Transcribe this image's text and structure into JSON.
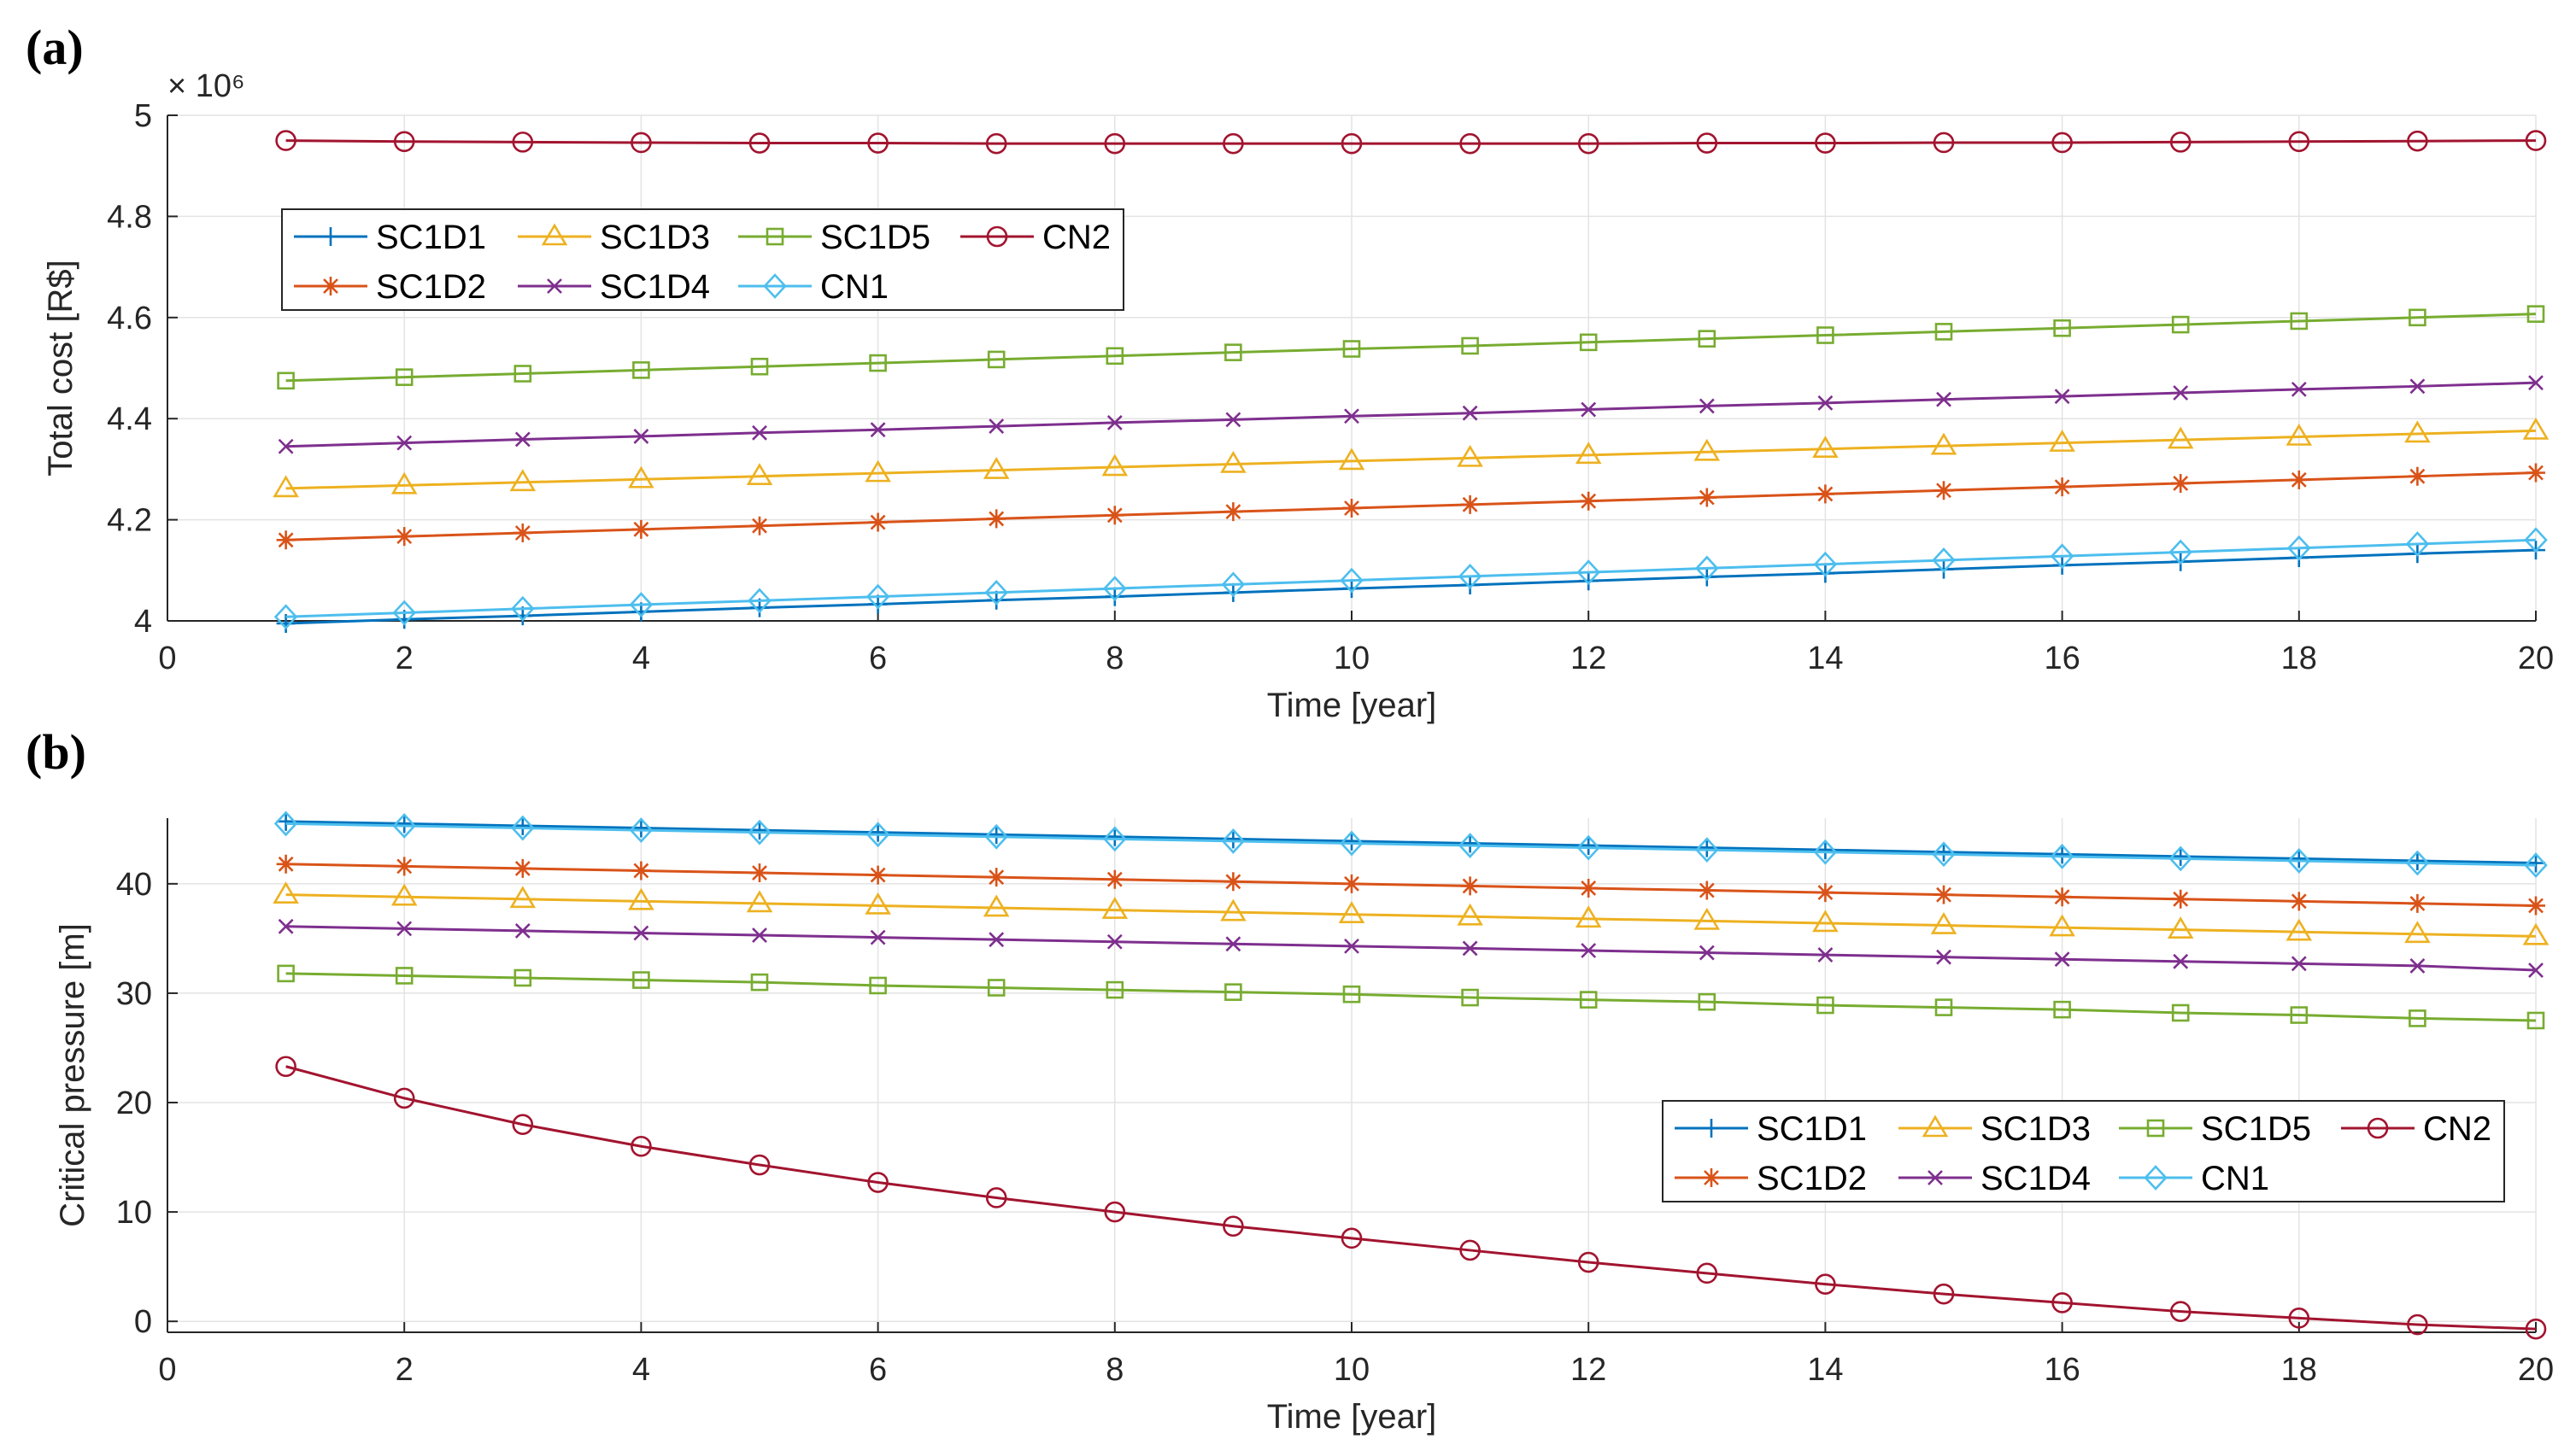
{
  "chart_data": [
    {
      "type": "line",
      "panel_label": "(a)",
      "exponent": "× 10⁶",
      "xlabel": "Time [year]",
      "ylabel": "Total cost [R$]",
      "xlim": [
        0,
        20
      ],
      "ylim": [
        4,
        5
      ],
      "xticks": [
        "0",
        "2",
        "4",
        "6",
        "8",
        "10",
        "12",
        "14",
        "16",
        "18",
        "20"
      ],
      "yticks": [
        "4",
        "4.2",
        "4.4",
        "4.6",
        "4.8",
        "5"
      ],
      "grid": true,
      "legend_position": "upper-left",
      "x": [
        1,
        2,
        3,
        4,
        5,
        6,
        7,
        8,
        9,
        10,
        11,
        12,
        13,
        14,
        15,
        16,
        17,
        18,
        19,
        20
      ],
      "series": [
        {
          "name": "SC1D1",
          "color": "#0072BD",
          "marker": "plus",
          "values": [
            3.995,
            4.003,
            4.01,
            4.018,
            4.026,
            4.033,
            4.041,
            4.048,
            4.056,
            4.064,
            4.071,
            4.079,
            4.087,
            4.094,
            4.102,
            4.11,
            4.117,
            4.125,
            4.133,
            4.14
          ]
        },
        {
          "name": "SC1D2",
          "color": "#D95319",
          "marker": "star",
          "values": [
            4.16,
            4.167,
            4.174,
            4.181,
            4.188,
            4.195,
            4.202,
            4.209,
            4.216,
            4.223,
            4.23,
            4.237,
            4.244,
            4.251,
            4.258,
            4.265,
            4.272,
            4.279,
            4.286,
            4.293
          ]
        },
        {
          "name": "SC1D3",
          "color": "#EDB120",
          "marker": "triangle",
          "values": [
            4.262,
            4.268,
            4.274,
            4.28,
            4.286,
            4.292,
            4.298,
            4.304,
            4.31,
            4.316,
            4.322,
            4.328,
            4.334,
            4.34,
            4.346,
            4.352,
            4.358,
            4.364,
            4.37,
            4.376
          ]
        },
        {
          "name": "SC1D4",
          "color": "#7E2F8E",
          "marker": "x",
          "values": [
            4.345,
            4.352,
            4.359,
            4.365,
            4.372,
            4.378,
            4.385,
            4.392,
            4.398,
            4.405,
            4.411,
            4.418,
            4.425,
            4.431,
            4.438,
            4.444,
            4.451,
            4.458,
            4.464,
            4.471
          ]
        },
        {
          "name": "SC1D5",
          "color": "#77AC30",
          "marker": "square",
          "values": [
            4.475,
            4.482,
            4.489,
            4.496,
            4.503,
            4.51,
            4.517,
            4.524,
            4.531,
            4.538,
            4.544,
            4.551,
            4.558,
            4.565,
            4.572,
            4.579,
            4.586,
            4.593,
            4.6,
            4.607
          ]
        },
        {
          "name": "CN1",
          "color": "#4DBEEE",
          "marker": "diamond",
          "values": [
            4.008,
            4.016,
            4.024,
            4.032,
            4.04,
            4.048,
            4.056,
            4.064,
            4.072,
            4.08,
            4.088,
            4.096,
            4.104,
            4.112,
            4.12,
            4.128,
            4.136,
            4.144,
            4.152,
            4.16
          ]
        },
        {
          "name": "CN2",
          "color": "#A2142F",
          "marker": "circle",
          "values": [
            4.95,
            4.948,
            4.947,
            4.946,
            4.945,
            4.945,
            4.944,
            4.944,
            4.944,
            4.944,
            4.944,
            4.944,
            4.945,
            4.945,
            4.946,
            4.946,
            4.947,
            4.948,
            4.949,
            4.95
          ]
        }
      ]
    },
    {
      "type": "line",
      "panel_label": "(b)",
      "xlabel": "Time [year]",
      "ylabel": "Critical pressure [m]",
      "xlim": [
        0,
        20
      ],
      "ylim": [
        -1,
        46
      ],
      "xticks": [
        "0",
        "2",
        "4",
        "6",
        "8",
        "10",
        "12",
        "14",
        "16",
        "18",
        "20"
      ],
      "yticks": [
        "0",
        "10",
        "20",
        "30",
        "40"
      ],
      "grid": true,
      "legend_position": "center-right",
      "x": [
        1,
        2,
        3,
        4,
        5,
        6,
        7,
        8,
        9,
        10,
        11,
        12,
        13,
        14,
        15,
        16,
        17,
        18,
        19,
        20
      ],
      "series": [
        {
          "name": "SC1D1",
          "color": "#0072BD",
          "marker": "plus",
          "values": [
            45.7,
            45.5,
            45.3,
            45.1,
            44.9,
            44.7,
            44.5,
            44.3,
            44.1,
            43.9,
            43.7,
            43.5,
            43.3,
            43.1,
            42.9,
            42.7,
            42.5,
            42.3,
            42.1,
            41.9
          ]
        },
        {
          "name": "SC1D2",
          "color": "#D95319",
          "marker": "star",
          "values": [
            41.8,
            41.6,
            41.4,
            41.2,
            41.0,
            40.8,
            40.6,
            40.4,
            40.2,
            40.0,
            39.8,
            39.6,
            39.4,
            39.2,
            39.0,
            38.8,
            38.6,
            38.4,
            38.2,
            38.0
          ]
        },
        {
          "name": "SC1D3",
          "color": "#EDB120",
          "marker": "triangle",
          "values": [
            39.0,
            38.8,
            38.6,
            38.4,
            38.2,
            38.0,
            37.8,
            37.6,
            37.4,
            37.2,
            37.0,
            36.8,
            36.6,
            36.4,
            36.2,
            36.0,
            35.8,
            35.6,
            35.4,
            35.2
          ]
        },
        {
          "name": "SC1D4",
          "color": "#7E2F8E",
          "marker": "x",
          "values": [
            36.1,
            35.9,
            35.7,
            35.5,
            35.3,
            35.1,
            34.9,
            34.7,
            34.5,
            34.3,
            34.1,
            33.9,
            33.7,
            33.5,
            33.3,
            33.1,
            32.9,
            32.7,
            32.5,
            32.1
          ]
        },
        {
          "name": "SC1D5",
          "color": "#77AC30",
          "marker": "square",
          "values": [
            31.8,
            31.6,
            31.4,
            31.2,
            31.0,
            30.7,
            30.5,
            30.3,
            30.1,
            29.9,
            29.6,
            29.4,
            29.2,
            28.9,
            28.7,
            28.5,
            28.2,
            28.0,
            27.7,
            27.5
          ]
        },
        {
          "name": "CN1",
          "color": "#4DBEEE",
          "marker": "diamond",
          "values": [
            45.5,
            45.3,
            45.1,
            44.9,
            44.7,
            44.5,
            44.3,
            44.1,
            43.9,
            43.7,
            43.5,
            43.3,
            43.1,
            42.9,
            42.7,
            42.5,
            42.3,
            42.1,
            41.9,
            41.7
          ]
        },
        {
          "name": "CN2",
          "color": "#A2142F",
          "marker": "circle",
          "values": [
            23.3,
            20.4,
            18.0,
            16.0,
            14.3,
            12.7,
            11.3,
            10.0,
            8.7,
            7.6,
            6.5,
            5.4,
            4.4,
            3.4,
            2.5,
            1.7,
            0.9,
            0.3,
            -0.3,
            -0.7
          ]
        }
      ]
    }
  ]
}
